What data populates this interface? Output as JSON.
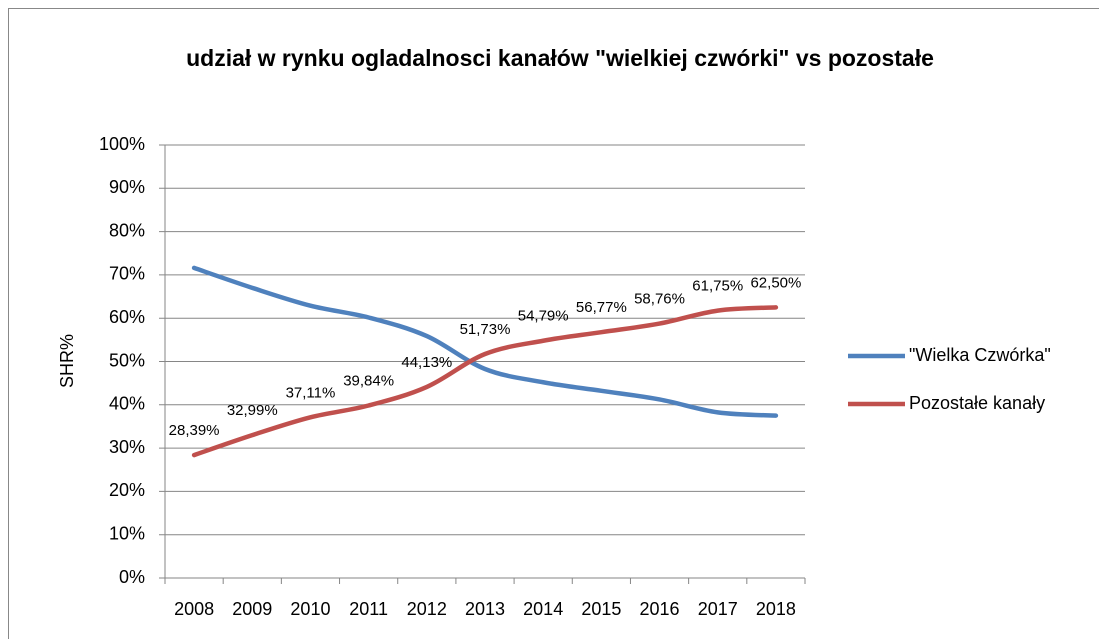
{
  "chart_data": {
    "type": "line",
    "title": "udział w rynku ogladalnosci kanałów \"wielkiej czwórki\" vs pozostałe",
    "y_label": "SHR%",
    "categories": [
      "2008",
      "2009",
      "2010",
      "2011",
      "2012",
      "2013",
      "2014",
      "2015",
      "2016",
      "2017",
      "2018"
    ],
    "series": [
      {
        "name": "\"Wielka Czwórka\"",
        "color": "#4f81bd",
        "values": [
          71.61,
          67.01,
          62.89,
          60.16,
          55.87,
          48.27,
          45.21,
          43.23,
          41.24,
          38.25,
          37.5
        ]
      },
      {
        "name": "Pozostałe kanały",
        "color": "#c0504d",
        "values": [
          28.39,
          32.99,
          37.11,
          39.84,
          44.13,
          51.73,
          54.79,
          56.77,
          58.76,
          61.75,
          62.5
        ],
        "value_labels": [
          "28,39%",
          "32,99%",
          "37,11%",
          "39,84%",
          "44,13%",
          "51,73%",
          "54,79%",
          "56,77%",
          "58,76%",
          "61,75%",
          "62,50%"
        ]
      }
    ],
    "ylim": [
      0,
      100
    ],
    "yticks": [
      {
        "value": 0,
        "label": "0%"
      },
      {
        "value": 10,
        "label": "10%"
      },
      {
        "value": 20,
        "label": "20%"
      },
      {
        "value": 30,
        "label": "30%"
      },
      {
        "value": 40,
        "label": "40%"
      },
      {
        "value": 50,
        "label": "50%"
      },
      {
        "value": 60,
        "label": "60%"
      },
      {
        "value": 70,
        "label": "70%"
      },
      {
        "value": 80,
        "label": "80%"
      },
      {
        "value": 90,
        "label": "90%"
      },
      {
        "value": 100,
        "label": "100%"
      }
    ],
    "grid": true,
    "legend": "right"
  }
}
